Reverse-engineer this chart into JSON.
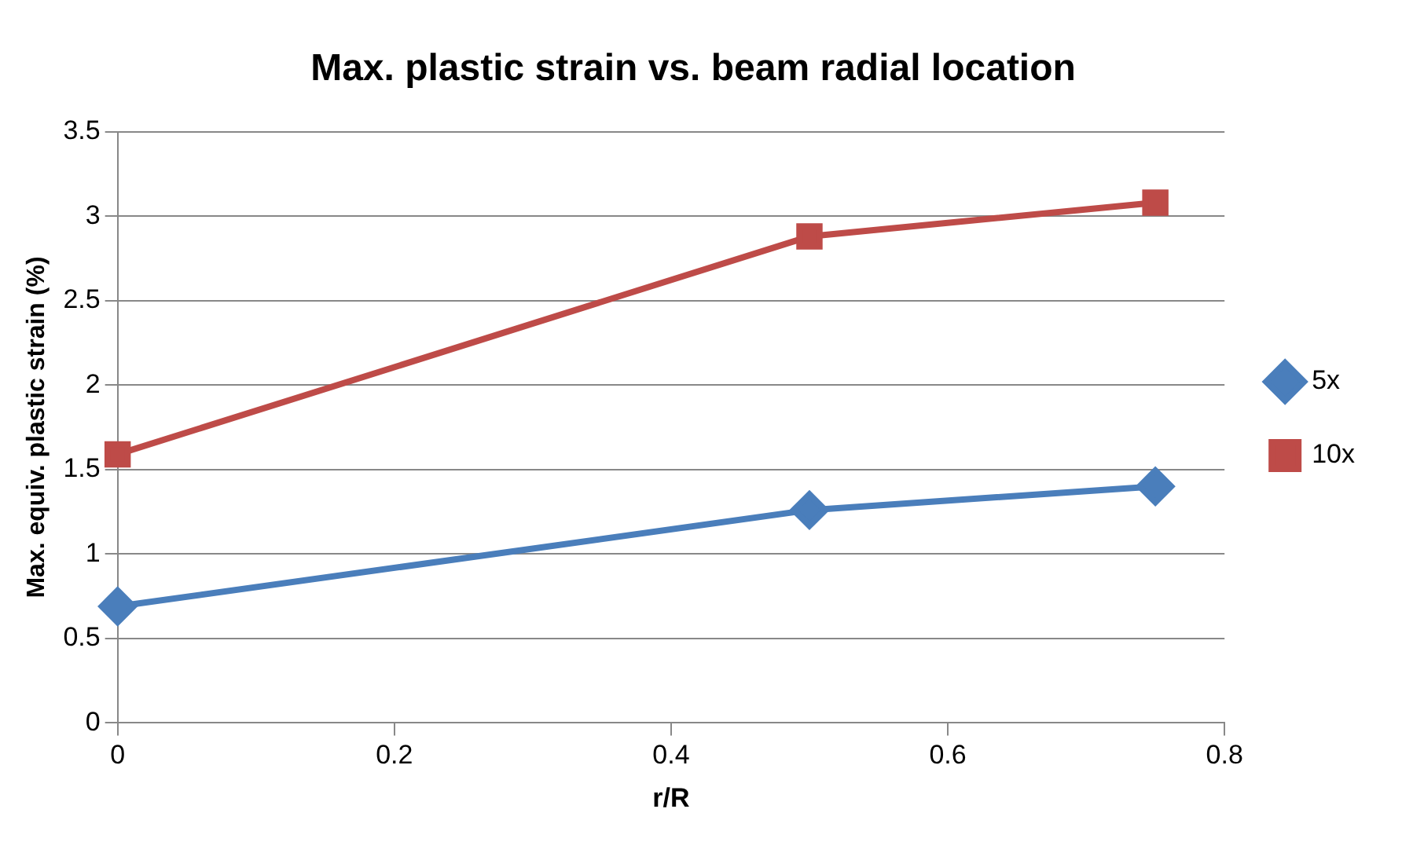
{
  "chart_data": {
    "type": "line",
    "title": "Max. plastic strain vs. beam radial location",
    "xlabel": "r/R",
    "ylabel": "Max. equiv. plastic strain (%)",
    "x": [
      0,
      0.5,
      0.75
    ],
    "series": [
      {
        "name": "5x",
        "color": "#4a7ebb",
        "values": [
          0.69,
          1.26,
          1.4
        ],
        "marker": "diamond"
      },
      {
        "name": "10x",
        "color": "#be4b48",
        "values": [
          1.59,
          2.88,
          3.08
        ],
        "marker": "square"
      }
    ],
    "xlim": [
      0,
      0.8
    ],
    "xticks": [
      0,
      0.2,
      0.4,
      0.6,
      0.8
    ],
    "ylim": [
      0,
      3.5
    ],
    "yticks": [
      0,
      0.5,
      1,
      1.5,
      2,
      2.5,
      3,
      3.5
    ],
    "grid": "y",
    "legend": "right"
  }
}
